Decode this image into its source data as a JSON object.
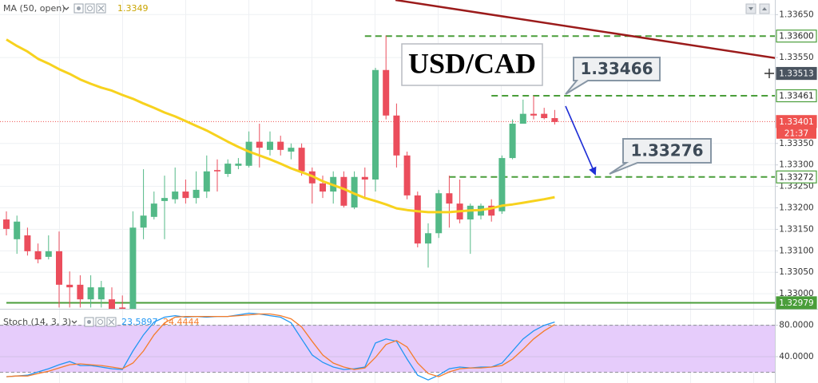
{
  "chart_data": [
    {
      "type": "candlestick",
      "title": "USD/CAD",
      "up_color": "#53b987",
      "down_color": "#eb4d5c",
      "open": [
        1.33173,
        1.33127,
        1.33136,
        1.33099,
        1.33086,
        1.33099,
        1.33021,
        1.33021,
        1.32987,
        1.32987,
        1.32987,
        1.32968,
        1.32965,
        1.33154,
        1.33179,
        1.33216,
        1.3322,
        1.33238,
        1.33223,
        1.33238,
        1.33288,
        1.33279,
        1.33298,
        1.33298,
        1.33354,
        1.33335,
        1.33354,
        1.33331,
        1.3334,
        1.33285,
        1.33257,
        1.33238,
        1.33272,
        1.33201,
        1.33272,
        1.33266,
        1.33521,
        1.33415,
        1.33322,
        1.33229,
        1.33117,
        1.33141,
        1.33234,
        1.3321,
        1.33173,
        1.33182,
        1.33205,
        1.33192,
        1.33316,
        1.33396,
        1.33419,
        1.33419,
        1.33409
      ],
      "high": [
        1.33192,
        1.33182,
        1.33154,
        1.33117,
        1.33136,
        1.33145,
        1.33052,
        1.33043,
        1.33043,
        1.3303,
        1.33015,
        1.32996,
        1.33192,
        1.3329,
        1.33238,
        1.33275,
        1.33294,
        1.33266,
        1.33285,
        1.33322,
        1.33313,
        1.33313,
        1.33316,
        1.33378,
        1.33396,
        1.33378,
        1.33368,
        1.3335,
        1.3335,
        1.33294,
        1.33275,
        1.33285,
        1.33285,
        1.33285,
        1.33294,
        1.33526,
        1.33601,
        1.33443,
        1.33331,
        1.33238,
        1.33164,
        1.33242,
        1.33275,
        1.33266,
        1.3321,
        1.3321,
        1.3322,
        1.33322,
        1.33406,
        1.33452,
        1.33461,
        1.33433,
        1.33428
      ],
      "low": [
        1.33136,
        1.33093,
        1.33089,
        1.33071,
        1.3308,
        1.32968,
        1.32968,
        1.32968,
        1.32968,
        1.32968,
        1.32965,
        1.32965,
        1.32965,
        1.33127,
        1.33173,
        1.33127,
        1.3321,
        1.3321,
        1.3321,
        1.33223,
        1.33238,
        1.33272,
        1.3329,
        1.33294,
        1.33294,
        1.33322,
        1.33322,
        1.33313,
        1.33275,
        1.3321,
        1.33223,
        1.3321,
        1.33201,
        1.33197,
        1.3322,
        1.33238,
        1.33406,
        1.33294,
        1.3322,
        1.33108,
        1.33061,
        1.3313,
        1.33154,
        1.33164,
        1.33093,
        1.33173,
        1.33168,
        1.33186,
        1.33313,
        1.33396,
        1.33406,
        1.33406,
        1.33394
      ],
      "close": [
        1.33151,
        1.33168,
        1.33099,
        1.3308,
        1.33099,
        1.33021,
        1.33015,
        1.32987,
        1.33015,
        1.33015,
        1.32965,
        1.32965,
        1.33154,
        1.33182,
        1.3321,
        1.33223,
        1.33238,
        1.33223,
        1.33242,
        1.33285,
        1.33285,
        1.33303,
        1.33303,
        1.33354,
        1.3334,
        1.33354,
        1.33335,
        1.3334,
        1.33285,
        1.33257,
        1.33238,
        1.33272,
        1.33205,
        1.33272,
        1.33266,
        1.33521,
        1.33415,
        1.33322,
        1.33229,
        1.33117,
        1.33141,
        1.33234,
        1.3321,
        1.33173,
        1.33205,
        1.33205,
        1.33182,
        1.33316,
        1.33396,
        1.33419,
        1.33415,
        1.33409,
        1.334
      ],
      "series": [
        {
          "name": "MA (50, open)",
          "color": "#f7d21e",
          "legend_value": 1.3349,
          "values": [
            1.33592,
            1.33577,
            1.33564,
            1.33547,
            1.33536,
            1.33523,
            1.33512,
            1.33499,
            1.33489,
            1.3348,
            1.33473,
            1.33463,
            1.33454,
            1.33443,
            1.33433,
            1.33422,
            1.33413,
            1.33402,
            1.33391,
            1.3338,
            1.33367,
            1.33354,
            1.33342,
            1.33331,
            1.33322,
            1.33313,
            1.33303,
            1.33292,
            1.33283,
            1.33274,
            1.33262,
            1.33253,
            1.33244,
            1.33233,
            1.33223,
            1.33216,
            1.33208,
            1.33199,
            1.33195,
            1.33192,
            1.3319,
            1.3319,
            1.3319,
            1.33192,
            1.33194,
            1.33195,
            1.33199,
            1.33205,
            1.33208,
            1.33212,
            1.33216,
            1.3322,
            1.33225
          ]
        }
      ],
      "ylim": [
        1.32965,
        1.33684
      ],
      "yticks": [
        {
          "value": 1.3365,
          "label": "1.33650"
        },
        {
          "value": 1.3355,
          "label": "1.33550"
        },
        {
          "value": 1.3335,
          "label": "1.33350"
        },
        {
          "value": 1.333,
          "label": "1.33300"
        },
        {
          "value": 1.3325,
          "label": "1.33250"
        },
        {
          "value": 1.332,
          "label": "1.33200"
        },
        {
          "value": 1.3315,
          "label": "1.33150"
        },
        {
          "value": 1.331,
          "label": "1.33100"
        },
        {
          "value": 1.3305,
          "label": "1.33050"
        },
        {
          "value": 1.33,
          "label": "1.33000"
        }
      ],
      "grid": true,
      "level_color": "#4a9e3a",
      "levels": [
        {
          "value": 1.336,
          "label": "1.33600",
          "style": "dashed",
          "start": 34
        },
        {
          "value": 1.33461,
          "label": "1.33461",
          "style": "dashed",
          "start": 46
        },
        {
          "value": 1.33272,
          "label": "1.33272",
          "style": "dashed",
          "start": 42
        },
        {
          "value": 1.32979,
          "label": "1.32979",
          "style": "solid",
          "start": 0
        }
      ],
      "trendline": {
        "x": [
          36.9,
          72.9
        ],
        "y": [
          1.33684,
          1.33549
        ],
        "color": "#9b1b1b"
      },
      "crosshair": {
        "value": 1.33513,
        "label": "1.33513"
      },
      "current_price": {
        "value": 1.33401,
        "label": "1.33401",
        "countdown": "21:37",
        "color": "#ef5350"
      },
      "annotations": [
        "1.33466",
        "1.33276"
      ]
    },
    {
      "type": "line",
      "title": "Stoch (14, 3, 3)",
      "series": [
        {
          "color": "#2196f3",
          "legend_value": 23.5897,
          "values": [
            14.4,
            15.4,
            16.4,
            20.5,
            24.6,
            29.7,
            33.8,
            28.7,
            28.7,
            26.7,
            24.6,
            23.6,
            47.2,
            67.7,
            84.1,
            90.3,
            92.3,
            90.3,
            91.3,
            90.3,
            91.3,
            91.3,
            93.3,
            95.4,
            94.4,
            92.3,
            90.3,
            83.1,
            62.6,
            42.1,
            32.8,
            26.7,
            23.6,
            24.6,
            26.7,
            57.4,
            62.6,
            59.5,
            36.9,
            16.4,
            10.3,
            16.4,
            24.6,
            26.7,
            25.6,
            26.7,
            26.7,
            31.8,
            47.2,
            62.6,
            72.8,
            80.0,
            84.1
          ]
        },
        {
          "color": "#f57c2a",
          "legend_value": 24.4444,
          "values": [
            14.4,
            15.4,
            15.4,
            18.5,
            21.5,
            25.6,
            29.7,
            30.8,
            29.7,
            28.7,
            26.7,
            24.6,
            31.8,
            47.2,
            67.7,
            83.1,
            90.3,
            91.3,
            91.3,
            91.3,
            91.3,
            91.3,
            92.3,
            93.3,
            94.4,
            94.4,
            92.3,
            88.2,
            77.9,
            59.5,
            42.1,
            31.8,
            26.7,
            23.6,
            25.6,
            39.0,
            55.4,
            60.5,
            52.3,
            31.8,
            18.5,
            14.4,
            20.5,
            24.6,
            25.6,
            25.6,
            26.7,
            28.7,
            36.9,
            49.2,
            62.6,
            72.8,
            81.0
          ]
        }
      ],
      "ylim": [
        6.4,
        100
      ],
      "yticks": [
        {
          "value": 80,
          "label": "80.0000"
        },
        {
          "value": 40,
          "label": "40.0000"
        }
      ],
      "band": [
        20,
        80
      ],
      "band_color": "#e6ccfb"
    }
  ]
}
